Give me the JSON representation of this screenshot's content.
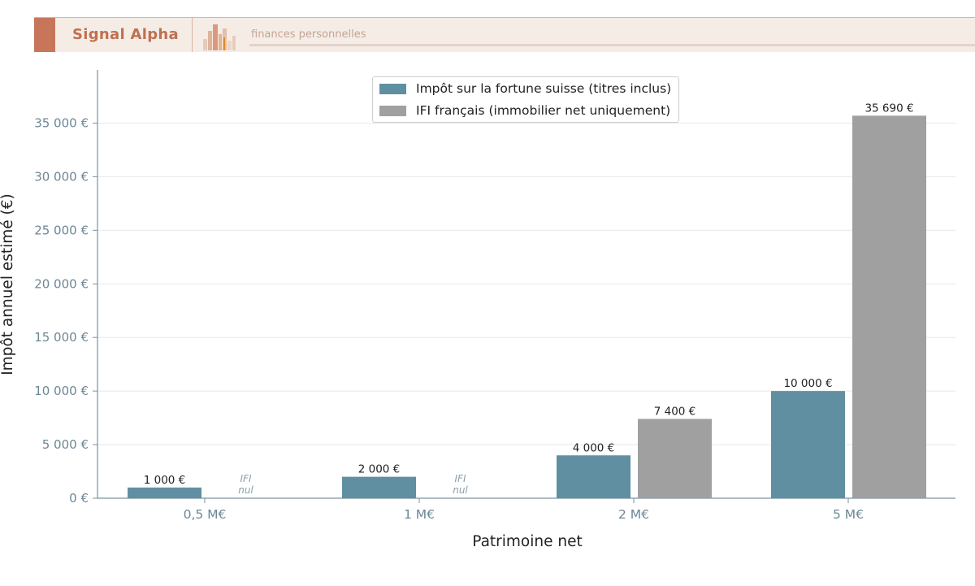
{
  "header": {
    "brand": "Signal Alpha",
    "tagline": "finances personnelles",
    "brand_color": "#c8765a"
  },
  "chart_data": {
    "type": "bar",
    "xlabel": "Patrimoine net",
    "ylabel": "Impôt annuel estimé (€)",
    "categories": [
      "0,5 M€",
      "1 M€",
      "2 M€",
      "5 M€"
    ],
    "ylim": [
      0,
      40000
    ],
    "yticks": [
      0,
      5000,
      10000,
      15000,
      20000,
      25000,
      30000,
      35000
    ],
    "ytick_labels": [
      "0 €",
      "5 000 €",
      "10 000 €",
      "15 000 €",
      "20 000 €",
      "25 000 €",
      "30 000 €",
      "35 000 €"
    ],
    "grid": true,
    "legend_position": "top-center",
    "series": [
      {
        "name": "Impôt sur la fortune suisse (titres inclus)",
        "color": "#5f8fa0",
        "values": [
          1000,
          2000,
          4000,
          10000
        ],
        "labels": [
          "1 000 €",
          "2 000 €",
          "4 000 €",
          "10 000 €"
        ]
      },
      {
        "name": "IFI français (immobilier net uniquement)",
        "color": "#a0a0a0",
        "values": [
          0,
          0,
          7400,
          35690
        ],
        "labels": [
          "IFI\nnul",
          "IFI\nnul",
          "7 400 €",
          "35 690 €"
        ]
      }
    ]
  }
}
